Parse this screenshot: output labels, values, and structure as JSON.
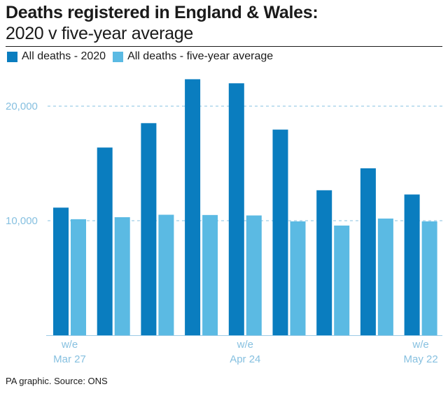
{
  "chart_data": {
    "type": "bar",
    "title": "Deaths registered in England & Wales:",
    "subtitle": "2020 v five-year average",
    "categories": [
      "w/e Mar 27",
      "",
      "",
      "",
      "w/e Apr 24",
      "",
      "",
      "",
      "w/e May 22"
    ],
    "x_tick_labels": [
      {
        "index": 0,
        "line1": "w/e",
        "line2": "Mar 27"
      },
      {
        "index": 4,
        "line1": "w/e",
        "line2": "Apr 24"
      },
      {
        "index": 8,
        "line1": "w/e",
        "line2": "May 22"
      }
    ],
    "series": [
      {
        "name": "All deaths - 2020",
        "color": "#0a7dbf",
        "values": [
          11141,
          16387,
          18516,
          22351,
          21997,
          17953,
          12657,
          14573,
          12288
        ]
      },
      {
        "name": "All deaths - five-year average",
        "color": "#5bbae3",
        "values": [
          10130,
          10305,
          10520,
          10497,
          10458,
          9941,
          9576,
          10188,
          9940
        ]
      }
    ],
    "yticks": [
      10000,
      20000
    ],
    "ytick_labels": [
      "10,000",
      "20,000"
    ],
    "ylim": [
      0,
      22500
    ],
    "xlabel": "",
    "ylabel": "",
    "grid": true,
    "legend": "top-left"
  },
  "footer": "PA graphic. Source: ONS",
  "colors": {
    "series_2020": "#0a7dbf",
    "series_avg": "#5bbae3",
    "gridline": "#86c0e0",
    "axis": "#9bcbe6"
  }
}
